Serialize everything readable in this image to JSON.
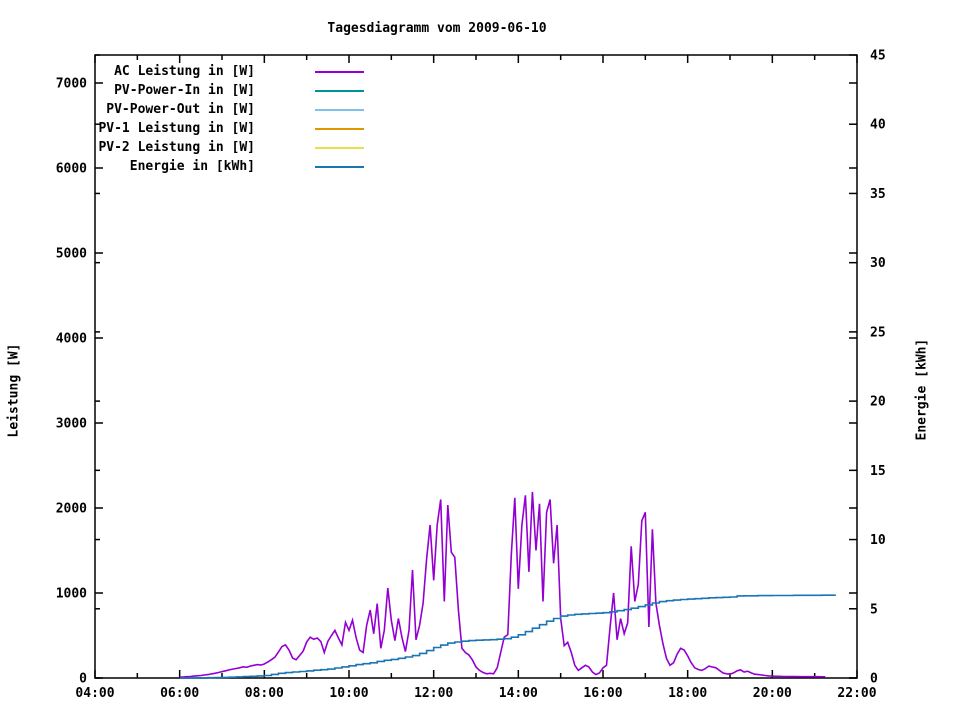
{
  "title": "Tagesdiagramm vom 2009-06-10",
  "axes": {
    "y_left": {
      "label": "Leistung [W]",
      "tick_values": [
        0,
        1000,
        2000,
        3000,
        4000,
        5000,
        6000,
        7000
      ],
      "tick_labels": [
        "0",
        "1000",
        "2000",
        "3000",
        "4000",
        "5000",
        "6000",
        "7000"
      ],
      "range": [
        0,
        7329
      ]
    },
    "y_right": {
      "label": "Energie [kWh]",
      "tick_values": [
        0,
        5,
        10,
        15,
        20,
        25,
        30,
        35,
        40,
        45
      ],
      "tick_labels": [
        "0",
        "5",
        "10",
        "15",
        "20",
        "25",
        "30",
        "35",
        "40",
        "45"
      ],
      "range": [
        0,
        45
      ]
    },
    "x": {
      "range_hours": [
        4,
        22
      ],
      "minor_tick_every_hours": 1,
      "major_ticks": [
        {
          "h": 4,
          "label": "04:00"
        },
        {
          "h": 6,
          "label": "06:00"
        },
        {
          "h": 8,
          "label": "08:00"
        },
        {
          "h": 10,
          "label": "10:00"
        },
        {
          "h": 12,
          "label": "12:00"
        },
        {
          "h": 14,
          "label": "14:00"
        },
        {
          "h": 16,
          "label": "16:00"
        },
        {
          "h": 18,
          "label": "18:00"
        },
        {
          "h": 20,
          "label": "20:00"
        },
        {
          "h": 22,
          "label": "22:00"
        }
      ]
    }
  },
  "legend": [
    {
      "label": "AC Leistung in [W]",
      "color": "#9400d3"
    },
    {
      "label": "PV-Power-In in [W]",
      "color": "#009393"
    },
    {
      "label": "PV-Power-Out in [W]",
      "color": "#7fc3ea"
    },
    {
      "label": "PV-1 Leistung in [W]",
      "color": "#dd9800"
    },
    {
      "label": "PV-2 Leistung in [W]",
      "color": "#e8e04a"
    },
    {
      "label": "Energie in [kWh]",
      "color": "#1a75b4"
    }
  ],
  "chart_data": {
    "type": "line",
    "title": "Tagesdiagramm vom 2009-06-10",
    "xlabel": "",
    "ylabel_left": "Leistung [W]",
    "ylabel_right": "Energie [kWh]",
    "x_range_hours": [
      4,
      22
    ],
    "ylim_left": [
      0,
      7329
    ],
    "ylim_right": [
      0,
      45
    ],
    "grid": false,
    "legend_position": "top-left-inside",
    "series": [
      {
        "name": "AC Leistung in [W]",
        "color": "#9400d3",
        "axis": "left",
        "unit": "W",
        "t_start_h": 6.0,
        "t_step_min": 5,
        "interpolation": "linear",
        "values": [
          10,
          12,
          15,
          18,
          22,
          26,
          30,
          35,
          40,
          48,
          55,
          65,
          75,
          85,
          95,
          105,
          112,
          120,
          132,
          126,
          140,
          150,
          158,
          152,
          165,
          190,
          215,
          245,
          305,
          370,
          390,
          330,
          235,
          215,
          265,
          315,
          425,
          480,
          455,
          470,
          430,
          300,
          430,
          500,
          560,
          470,
          390,
          655,
          560,
          680,
          475,
          330,
          300,
          615,
          800,
          520,
          875,
          350,
          560,
          1060,
          680,
          440,
          700,
          480,
          310,
          560,
          1270,
          450,
          620,
          880,
          1400,
          1800,
          1150,
          1800,
          2100,
          900,
          2035,
          1480,
          1420,
          800,
          350,
          300,
          270,
          210,
          130,
          90,
          65,
          50,
          55,
          50,
          120,
          300,
          480,
          510,
          1450,
          2120,
          1050,
          1800,
          2150,
          1250,
          2190,
          1500,
          2050,
          900,
          1950,
          2100,
          1350,
          1800,
          700,
          380,
          420,
          300,
          150,
          90,
          120,
          150,
          130,
          70,
          40,
          60,
          120,
          150,
          600,
          1000,
          450,
          700,
          520,
          650,
          1550,
          900,
          1100,
          1850,
          1950,
          600,
          1750,
          880,
          620,
          400,
          230,
          150,
          180,
          280,
          350,
          330,
          260,
          180,
          120,
          100,
          90,
          110,
          140,
          130,
          120,
          90,
          60,
          50,
          45,
          60,
          85,
          95,
          70,
          80,
          60,
          45,
          40,
          35,
          30,
          25,
          22,
          20,
          20,
          18,
          18,
          17,
          16,
          16,
          15,
          15,
          15,
          15,
          15,
          15,
          14,
          14
        ]
      },
      {
        "name": "PV-Power-In in [W]",
        "color": "#009393",
        "axis": "left",
        "unit": "W",
        "values": []
      },
      {
        "name": "PV-Power-Out in [W]",
        "color": "#7fc3ea",
        "axis": "left",
        "unit": "W",
        "values": []
      },
      {
        "name": "PV-1 Leistung in [W]",
        "color": "#dd9800",
        "axis": "left",
        "unit": "W",
        "values": []
      },
      {
        "name": "PV-2 Leistung in [W]",
        "color": "#e8e04a",
        "axis": "left",
        "unit": "W",
        "values": []
      },
      {
        "name": "Energie in [kWh]",
        "color": "#1a75b4",
        "axis": "right",
        "unit": "kWh",
        "t_start_h": 6.0,
        "t_step_min": 10,
        "interpolation": "step-after",
        "values": [
          0,
          0,
          0.01,
          0.01,
          0.02,
          0.03,
          0.04,
          0.06,
          0.08,
          0.1,
          0.12,
          0.15,
          0.18,
          0.26,
          0.34,
          0.39,
          0.43,
          0.47,
          0.51,
          0.56,
          0.6,
          0.64,
          0.72,
          0.8,
          0.88,
          0.97,
          1.03,
          1.1,
          1.2,
          1.28,
          1.34,
          1.42,
          1.52,
          1.62,
          1.78,
          1.98,
          2.2,
          2.38,
          2.52,
          2.6,
          2.66,
          2.7,
          2.73,
          2.75,
          2.77,
          2.8,
          2.84,
          2.95,
          3.12,
          3.35,
          3.6,
          3.85,
          4.1,
          4.3,
          4.47,
          4.55,
          4.6,
          4.63,
          4.66,
          4.68,
          4.72,
          4.78,
          4.86,
          4.94,
          5.04,
          5.16,
          5.28,
          5.42,
          5.52,
          5.58,
          5.63,
          5.67,
          5.7,
          5.73,
          5.76,
          5.79,
          5.81,
          5.83,
          5.85,
          5.93,
          5.94,
          5.94,
          5.95,
          5.95,
          5.96,
          5.96,
          5.96,
          5.97,
          5.97,
          5.97,
          5.97,
          5.98,
          5.98,
          5.98
        ]
      }
    ]
  }
}
